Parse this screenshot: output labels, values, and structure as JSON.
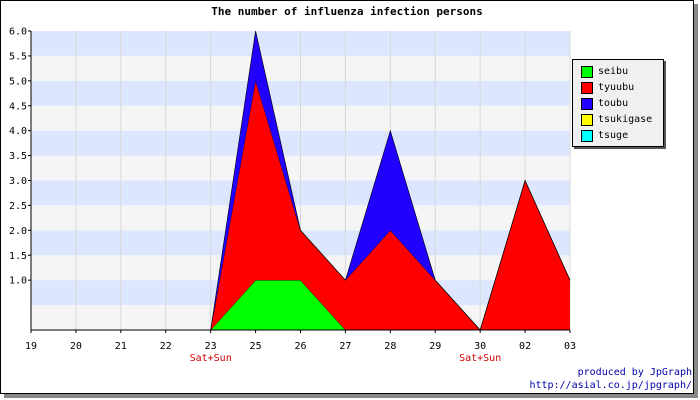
{
  "chart_data": {
    "type": "area",
    "stacked": true,
    "title": "The number of influenza infection persons",
    "x": [
      "19",
      "20",
      "21",
      "22",
      "23",
      "25",
      "26",
      "27",
      "28",
      "29",
      "30",
      "02",
      "03"
    ],
    "x_sublabels": [
      "",
      "",
      "",
      "",
      "Sat+Sun",
      "",
      "",
      "",
      "",
      "",
      "Sat+Sun",
      "",
      ""
    ],
    "ylim": [
      0,
      6
    ],
    "yticks": [
      "1.0",
      "1.5",
      "2.0",
      "2.5",
      "3.0",
      "3.5",
      "4.0",
      "4.5",
      "5.0",
      "5.5",
      "6.0"
    ],
    "grid": true,
    "legend_position": "top-right",
    "series": [
      {
        "name": "seibu",
        "color": "#00ff00",
        "values": [
          0,
          0,
          0,
          0,
          0,
          1,
          1,
          0,
          0,
          0,
          0,
          0,
          0
        ]
      },
      {
        "name": "tyuubu",
        "color": "#ff0000",
        "values": [
          0,
          0,
          0,
          0,
          0,
          4,
          1,
          1,
          2,
          1,
          0,
          3,
          1
        ]
      },
      {
        "name": "toubu",
        "color": "#2200ff",
        "values": [
          0,
          0,
          0,
          0,
          0,
          1,
          0,
          0,
          2,
          0,
          0,
          0,
          0
        ]
      },
      {
        "name": "tsukigase",
        "color": "#ffff00",
        "values": [
          0,
          0,
          0,
          0,
          0,
          0,
          0,
          0,
          0,
          0,
          0,
          0,
          0
        ]
      },
      {
        "name": "tsuge",
        "color": "#00ffff",
        "values": [
          0,
          0,
          0,
          0,
          0,
          0,
          0,
          0,
          0,
          0,
          0,
          0,
          0
        ]
      }
    ]
  },
  "footer": {
    "credit_line1": "produced by JpGraph",
    "credit_line2": "http://asial.co.jp/jpgraph/"
  },
  "colors": {
    "band_light": "#f5f5f5",
    "band_blue": "#dde6ff",
    "weekend_label": "#cc0000"
  }
}
